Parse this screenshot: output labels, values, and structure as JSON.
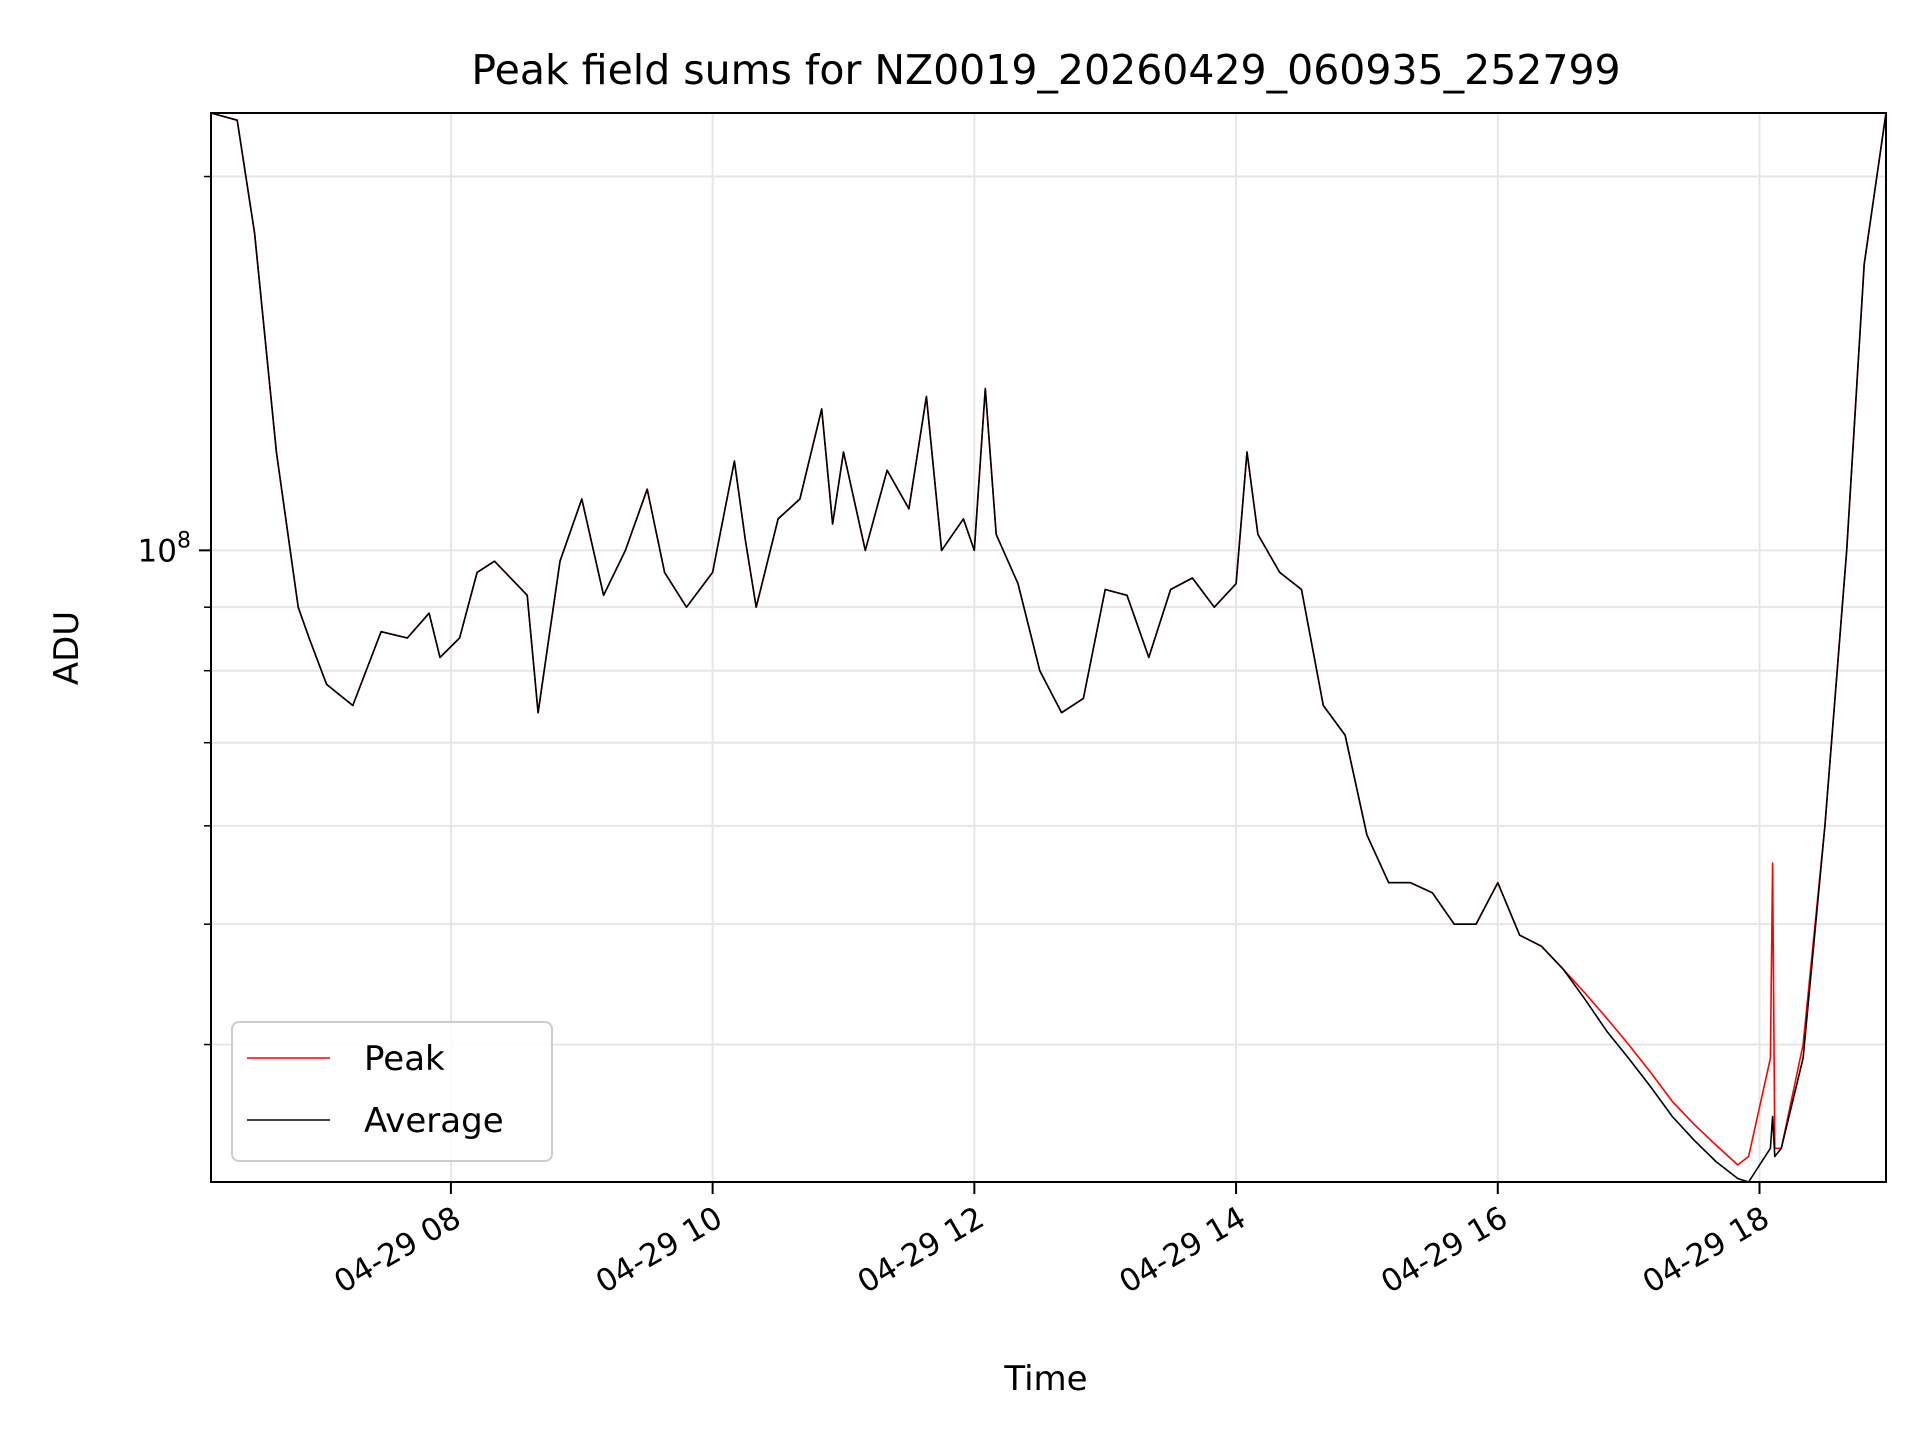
{
  "chart_data": {
    "type": "line",
    "title": "Peak field sums for NZ0019_20260429_060935_252799",
    "xlabel": "Time",
    "ylabel": "ADU",
    "y_scale": "log",
    "ylim": [
      31000000.0,
      225000000.0
    ],
    "xlim": [
      "04-29 06:10",
      "04-29 18:58"
    ],
    "x_ticks": [
      {
        "t": "04-29 08:00",
        "label": "04-29 08"
      },
      {
        "t": "04-29 10:00",
        "label": "04-29 10"
      },
      {
        "t": "04-29 12:00",
        "label": "04-29 12"
      },
      {
        "t": "04-29 14:00",
        "label": "04-29 14"
      },
      {
        "t": "04-29 16:00",
        "label": "04-29 16"
      },
      {
        "t": "04-29 18:00",
        "label": "04-29 18"
      }
    ],
    "y_ticks": [
      {
        "value": 100000000.0,
        "base": "10",
        "exponent": "8"
      }
    ],
    "y_minor_ticks": [
      40000000.0,
      50000000.0,
      60000000.0,
      70000000.0,
      80000000.0,
      90000000.0,
      200000000.0
    ],
    "grid": true,
    "legend_position": "lower-left",
    "series": [
      {
        "name": "Peak",
        "color": "#ff0000",
        "x": [
          "04-29 06:10",
          "04-29 06:22",
          "04-29 06:30",
          "04-29 06:40",
          "04-29 06:50",
          "04-29 06:55",
          "04-29 07:03",
          "04-29 07:15",
          "04-29 07:28",
          "04-29 07:40",
          "04-29 07:50",
          "04-29 07:55",
          "04-29 08:04",
          "04-29 08:12",
          "04-29 08:20",
          "04-29 08:35",
          "04-29 08:40",
          "04-29 08:50",
          "04-29 09:00",
          "04-29 09:10",
          "04-29 09:20",
          "04-29 09:30",
          "04-29 09:38",
          "04-29 09:48",
          "04-29 10:00",
          "04-29 10:10",
          "04-29 10:15",
          "04-29 10:20",
          "04-29 10:30",
          "04-29 10:40",
          "04-29 10:50",
          "04-29 10:55",
          "04-29 11:00",
          "04-29 11:10",
          "04-29 11:20",
          "04-29 11:30",
          "04-29 11:38",
          "04-29 11:45",
          "04-29 11:55",
          "04-29 12:00",
          "04-29 12:05",
          "04-29 12:10",
          "04-29 12:20",
          "04-29 12:30",
          "04-29 12:40",
          "04-29 12:50",
          "04-29 13:00",
          "04-29 13:10",
          "04-29 13:20",
          "04-29 13:30",
          "04-29 13:40",
          "04-29 13:50",
          "04-29 14:00",
          "04-29 14:05",
          "04-29 14:10",
          "04-29 14:20",
          "04-29 14:30",
          "04-29 14:40",
          "04-29 14:50",
          "04-29 15:00",
          "04-29 15:10",
          "04-29 15:20",
          "04-29 15:30",
          "04-29 15:40",
          "04-29 15:50",
          "04-29 16:00",
          "04-29 16:10",
          "04-29 16:20",
          "04-29 16:30",
          "04-29 16:40",
          "04-29 16:50",
          "04-29 17:00",
          "04-29 17:10",
          "04-29 17:20",
          "04-29 17:30",
          "04-29 17:40",
          "04-29 17:50",
          "04-29 17:55",
          "04-29 18:05",
          "04-29 18:06",
          "04-29 18:07",
          "04-29 18:10",
          "04-29 18:20",
          "04-29 18:30",
          "04-29 18:40",
          "04-29 18:48",
          "04-29 18:58"
        ],
        "y": [
          225000000.0,
          222000000.0,
          180000000.0,
          120000000.0,
          90000000.0,
          85000000.0,
          78000000.0,
          75000000.0,
          86000000.0,
          85000000.0,
          89000000.0,
          82000000.0,
          85000000.0,
          96000000.0,
          98000000.0,
          92000000.0,
          74000000.0,
          98000000.0,
          110000000.0,
          92000000.0,
          100000000.0,
          112000000.0,
          96000000.0,
          90000000.0,
          96000000.0,
          118000000.0,
          102000000.0,
          90000000.0,
          106000000.0,
          110000000.0,
          130000000.0,
          105000000.0,
          120000000.0,
          100000000.0,
          116000000.0,
          108000000.0,
          133000000.0,
          100000000.0,
          106000000.0,
          100000000.0,
          135000000.0,
          103000000.0,
          94000000.0,
          80000000.0,
          74000000.0,
          76000000.0,
          93000000.0,
          92000000.0,
          82000000.0,
          93000000.0,
          95000000.0,
          90000000.0,
          94000000.0,
          120000000.0,
          103000000.0,
          96000000.0,
          93000000.0,
          75000000.0,
          71000000.0,
          59000000.0,
          54000000.0,
          54000000.0,
          53000000.0,
          50000000.0,
          50000000.0,
          54000000.0,
          49000000.0,
          48000000.0,
          46000000.0,
          44000000.0,
          42000000.0,
          40000000.0,
          38000000.0,
          36000000.0,
          34500000.0,
          33200000.0,
          32000000.0,
          32500000.0,
          39000000.0,
          56000000.0,
          33000000.0,
          33000000.0,
          40000000.0,
          60000000.0,
          100000000.0,
          170000000.0,
          225000000.0
        ]
      },
      {
        "name": "Average",
        "color": "#000000",
        "x": [
          "04-29 06:10",
          "04-29 06:22",
          "04-29 06:30",
          "04-29 06:40",
          "04-29 06:50",
          "04-29 06:55",
          "04-29 07:03",
          "04-29 07:15",
          "04-29 07:28",
          "04-29 07:40",
          "04-29 07:50",
          "04-29 07:55",
          "04-29 08:04",
          "04-29 08:12",
          "04-29 08:20",
          "04-29 08:35",
          "04-29 08:40",
          "04-29 08:50",
          "04-29 09:00",
          "04-29 09:10",
          "04-29 09:20",
          "04-29 09:30",
          "04-29 09:38",
          "04-29 09:48",
          "04-29 10:00",
          "04-29 10:10",
          "04-29 10:15",
          "04-29 10:20",
          "04-29 10:30",
          "04-29 10:40",
          "04-29 10:50",
          "04-29 10:55",
          "04-29 11:00",
          "04-29 11:10",
          "04-29 11:20",
          "04-29 11:30",
          "04-29 11:38",
          "04-29 11:45",
          "04-29 11:55",
          "04-29 12:00",
          "04-29 12:05",
          "04-29 12:10",
          "04-29 12:20",
          "04-29 12:30",
          "04-29 12:40",
          "04-29 12:50",
          "04-29 13:00",
          "04-29 13:10",
          "04-29 13:20",
          "04-29 13:30",
          "04-29 13:40",
          "04-29 13:50",
          "04-29 14:00",
          "04-29 14:05",
          "04-29 14:10",
          "04-29 14:20",
          "04-29 14:30",
          "04-29 14:40",
          "04-29 14:50",
          "04-29 15:00",
          "04-29 15:10",
          "04-29 15:20",
          "04-29 15:30",
          "04-29 15:40",
          "04-29 15:50",
          "04-29 16:00",
          "04-29 16:10",
          "04-29 16:20",
          "04-29 16:30",
          "04-29 16:40",
          "04-29 16:50",
          "04-29 17:00",
          "04-29 17:10",
          "04-29 17:20",
          "04-29 17:30",
          "04-29 17:40",
          "04-29 17:50",
          "04-29 17:55",
          "04-29 18:05",
          "04-29 18:06",
          "04-29 18:07",
          "04-29 18:10",
          "04-29 18:20",
          "04-29 18:30",
          "04-29 18:40",
          "04-29 18:48",
          "04-29 18:58"
        ],
        "y": [
          225000000.0,
          222000000.0,
          180000000.0,
          120000000.0,
          90000000.0,
          85000000.0,
          78000000.0,
          75000000.0,
          86000000.0,
          85000000.0,
          89000000.0,
          82000000.0,
          85000000.0,
          96000000.0,
          98000000.0,
          92000000.0,
          74000000.0,
          98000000.0,
          110000000.0,
          92000000.0,
          100000000.0,
          112000000.0,
          96000000.0,
          90000000.0,
          96000000.0,
          118000000.0,
          102000000.0,
          90000000.0,
          106000000.0,
          110000000.0,
          130000000.0,
          105000000.0,
          120000000.0,
          100000000.0,
          116000000.0,
          108000000.0,
          133000000.0,
          100000000.0,
          106000000.0,
          100000000.0,
          135000000.0,
          103000000.0,
          94000000.0,
          80000000.0,
          74000000.0,
          76000000.0,
          93000000.0,
          92000000.0,
          82000000.0,
          93000000.0,
          95000000.0,
          90000000.0,
          94000000.0,
          120000000.0,
          103000000.0,
          96000000.0,
          93000000.0,
          75000000.0,
          71000000.0,
          59000000.0,
          54000000.0,
          54000000.0,
          53000000.0,
          50000000.0,
          50000000.0,
          54000000.0,
          49000000.0,
          48000000.0,
          46000000.0,
          43500000.0,
          41000000.0,
          39000000.0,
          37000000.0,
          35000000.0,
          33500000.0,
          32200000.0,
          31200000.0,
          31000000.0,
          33000000.0,
          35000000.0,
          32500000.0,
          33000000.0,
          39000000.0,
          60000000.0,
          100000000.0,
          170000000.0,
          225000000.0
        ]
      }
    ]
  }
}
